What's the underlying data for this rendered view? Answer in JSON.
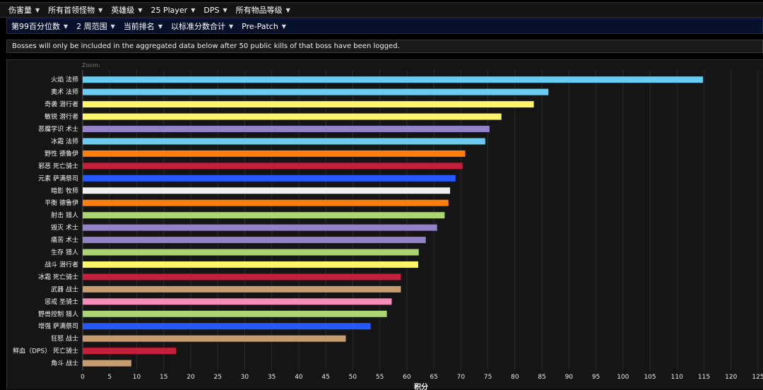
{
  "top_menu": [
    {
      "label": "伤害量"
    },
    {
      "label": "所有首领怪物"
    },
    {
      "label": "英雄级"
    },
    {
      "label": "25 Player"
    },
    {
      "label": "DPS"
    },
    {
      "label": "所有物品等级"
    }
  ],
  "filter_menu": [
    {
      "label": "第99百分位数"
    },
    {
      "label": "2 周范围"
    },
    {
      "label": "当前排名"
    },
    {
      "label": "以标准分数合计"
    },
    {
      "label": "Pre-Patch"
    }
  ],
  "notice": "Bosses will only be included in the aggregated data below after 50 public kills of that boss have been logged.",
  "chart": {
    "zoom_label": "Zoom:"
  },
  "chart_data": {
    "type": "bar",
    "orientation": "horizontal",
    "xlabel": "积分",
    "xlim": [
      0,
      125
    ],
    "x_ticks": [
      0,
      5,
      10,
      15,
      20,
      25,
      30,
      35,
      40,
      45,
      50,
      55,
      60,
      65,
      70,
      75,
      80,
      85,
      90,
      95,
      100,
      105,
      110,
      115,
      120,
      125
    ],
    "grid": true,
    "categories": [
      "火焰 法师",
      "奥术 法师",
      "奇袭 潜行者",
      "敏锐 潜行者",
      "恶魔学识 术士",
      "冰霜 法师",
      "野性 德鲁伊",
      "邪恶 死亡骑士",
      "元素 萨满祭司",
      "暗影 牧师",
      "平衡 德鲁伊",
      "射击 猎人",
      "毁灭 术士",
      "痛苦 术士",
      "生存 猎人",
      "战斗 潜行者",
      "冰霜 死亡骑士",
      "武器 战士",
      "惩戒 圣骑士",
      "野兽控制 猎人",
      "增强 萨满祭司",
      "狂怒 战士",
      "鲜血（DPS） 死亡骑士",
      "角斗 战士"
    ],
    "values": [
      114.8,
      86.2,
      83.5,
      77.5,
      75.3,
      74.5,
      70.8,
      70.3,
      69.0,
      68.0,
      67.7,
      67.0,
      65.6,
      63.5,
      62.2,
      62.1,
      58.9,
      58.9,
      57.2,
      56.3,
      53.3,
      48.7,
      17.3,
      9.0
    ],
    "colors": [
      "#69ccf0",
      "#69ccf0",
      "#fff569",
      "#fff569",
      "#9482c9",
      "#69ccf0",
      "#ff7d0a",
      "#c41f3b",
      "#2459ff",
      "#f0f0f0",
      "#ff7d0a",
      "#abd473",
      "#9482c9",
      "#9482c9",
      "#abd473",
      "#fff569",
      "#c41f3b",
      "#c79c6e",
      "#f58cba",
      "#abd473",
      "#2459ff",
      "#c79c6e",
      "#c41f3b",
      "#c79c6e"
    ]
  }
}
